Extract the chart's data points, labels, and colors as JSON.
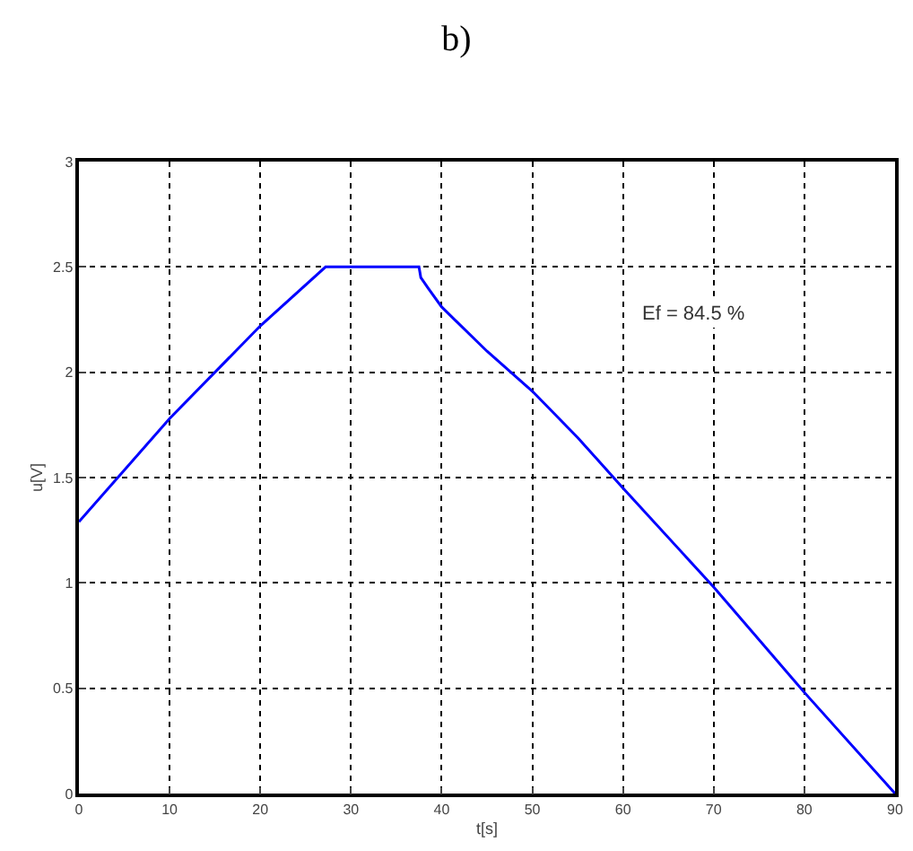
{
  "chart_data": {
    "type": "line",
    "title": "b)",
    "xlabel": "t[s]",
    "ylabel": "u[V]",
    "x": [
      0,
      10,
      20,
      27.2,
      37.5,
      37.7,
      38.5,
      40,
      45,
      50,
      55,
      60,
      70,
      80,
      90
    ],
    "series": [
      {
        "color": "#0000ff",
        "values": [
          1.29,
          1.78,
          2.22,
          2.5,
          2.5,
          2.45,
          2.4,
          2.31,
          2.1,
          1.91,
          1.69,
          1.45,
          0.98,
          0.48,
          0
        ]
      }
    ],
    "xlim": [
      0,
      90
    ],
    "xticks": [
      0,
      10,
      20,
      30,
      40,
      50,
      60,
      70,
      80,
      90
    ],
    "ylim": [
      0,
      3
    ],
    "yticks": [
      0,
      0.5,
      1,
      1.5,
      2,
      2.5,
      3
    ],
    "grid": true,
    "line_style": "solid",
    "marker": "none",
    "annotations": [
      "Ef = 84.5 %"
    ]
  }
}
